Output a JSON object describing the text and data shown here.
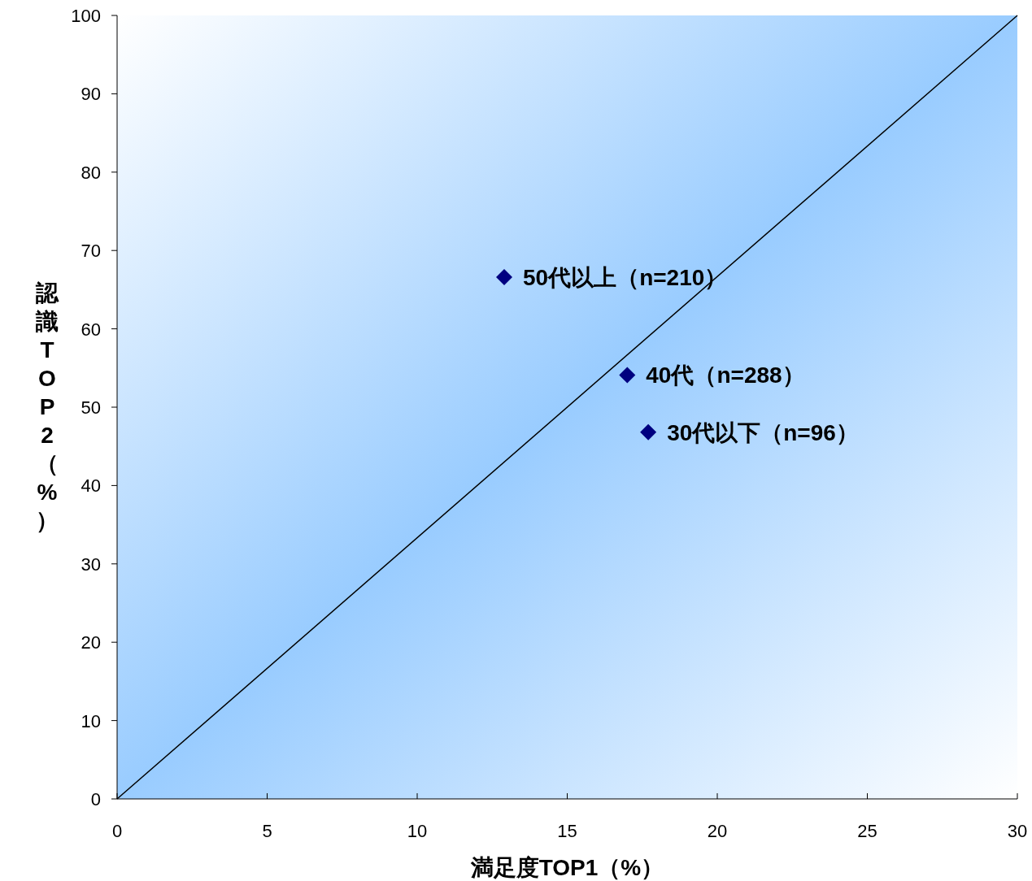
{
  "chart_data": {
    "type": "scatter",
    "xlabel": "満足度TOP1（%）",
    "ylabel": "認識TOP2（%）",
    "xlim": [
      0,
      30
    ],
    "ylim": [
      0,
      100
    ],
    "xticks": [
      0,
      5,
      10,
      15,
      20,
      25,
      30
    ],
    "yticks": [
      0,
      10,
      20,
      30,
      40,
      50,
      60,
      70,
      80,
      90,
      100
    ],
    "marker": "diamond",
    "legend": false,
    "series": [
      {
        "type": "line",
        "marker": "none",
        "color": "#000000",
        "x": [
          0,
          30
        ],
        "values": [
          0,
          100
        ]
      },
      {
        "name": "50代以上（n=210）",
        "color": "#000080",
        "x": [
          12.9
        ],
        "values": [
          66.6
        ]
      },
      {
        "name": "40代（n=288）",
        "color": "#000080",
        "x": [
          17.0
        ],
        "values": [
          54.1
        ]
      },
      {
        "name": "30代以下（n=96）",
        "color": "#000080",
        "x": [
          17.7
        ],
        "values": [
          46.8
        ]
      }
    ]
  }
}
